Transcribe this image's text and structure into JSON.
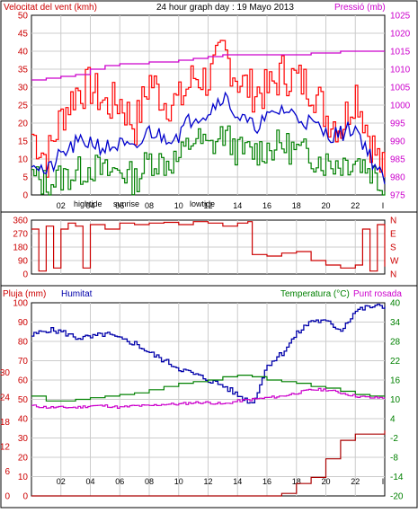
{
  "header": {
    "wind_label": "Velocitat del vent (kmh)",
    "title": "24 hour graph day : 19 Mayo 2013",
    "pressure_label": "Pressió (mb)"
  },
  "colors": {
    "wind_gust": "#ff0000",
    "wind_avg": "#0000cc",
    "wind_low": "#008000",
    "pressure": "#cc00cc",
    "direction": "#cc0000",
    "humidity": "#0000aa",
    "temperature": "#008000",
    "dewpoint": "#cc00cc",
    "rain": "#aa0000",
    "grid": "#cccccc",
    "axis_wind": "#cc0000",
    "axis_pressure": "#cc00cc",
    "axis_temp": "#008000"
  },
  "x_axis": {
    "ticks": [
      "02",
      "04",
      "06",
      "08",
      "10",
      "12",
      "14",
      "16",
      "18",
      "20",
      "22",
      "I"
    ],
    "events": [
      "hightide",
      "sunrise",
      "lowtide"
    ]
  },
  "chart_data": [
    {
      "type": "line",
      "name": "wind_pressure",
      "ylim": [
        0,
        50
      ],
      "yticks": [
        "0",
        "5",
        "10",
        "15",
        "20",
        "25",
        "30",
        "35",
        "40",
        "45",
        "50"
      ],
      "y2lim": [
        975,
        1025
      ],
      "y2ticks": [
        "975",
        "980",
        "985",
        "990",
        "995",
        "1000",
        "1005",
        "1010",
        "1015",
        "1020",
        "1025"
      ],
      "x_hours": [
        0,
        1,
        2,
        3,
        4,
        5,
        6,
        7,
        8,
        9,
        10,
        11,
        12,
        13,
        14,
        15,
        16,
        17,
        18,
        19,
        20,
        21,
        22,
        23,
        24
      ],
      "series": [
        {
          "key": "gust",
          "values": [
            17,
            10,
            22,
            29,
            30,
            25,
            26,
            19,
            32,
            26,
            26,
            33,
            32,
            40,
            32,
            29,
            29,
            34,
            32,
            30,
            22,
            19,
            29,
            15,
            5
          ]
        },
        {
          "key": "avg",
          "values": [
            10,
            6,
            11,
            14,
            15,
            13,
            14,
            12,
            18,
            16,
            17,
            22,
            23,
            28,
            22,
            19,
            21,
            24,
            22,
            20,
            17,
            17,
            19,
            11,
            3
          ]
        },
        {
          "key": "low",
          "values": [
            5,
            3,
            5,
            6,
            8,
            6,
            7,
            4,
            10,
            9,
            10,
            16,
            13,
            17,
            12,
            12,
            13,
            14,
            12,
            11,
            9,
            9,
            10,
            7,
            1
          ]
        },
        {
          "key": "pressure",
          "values": [
            1007,
            1007.5,
            1008,
            1008.5,
            1010,
            1011,
            1011.5,
            1011.5,
            1012,
            1012,
            1012.5,
            1013,
            1013.5,
            1014,
            1014,
            1014,
            1014,
            1014,
            1014,
            1014.5,
            1014.5,
            1015,
            1015,
            1015,
            1015
          ]
        }
      ]
    },
    {
      "type": "line",
      "name": "wind_direction",
      "ylim": [
        0,
        360
      ],
      "yticks": [
        "0",
        "90",
        "180",
        "270",
        "360"
      ],
      "y2ticks": [
        "N",
        "W",
        "S",
        "E",
        "N"
      ],
      "x_hours": [
        0,
        0.5,
        1,
        1.5,
        2,
        2.5,
        3,
        3.5,
        4,
        5,
        6,
        7,
        8,
        9,
        10,
        11,
        12,
        13,
        14,
        14.7,
        15,
        16,
        17,
        18,
        19,
        20,
        21,
        22,
        22.5,
        23,
        23.5,
        24
      ],
      "values": [
        300,
        20,
        320,
        40,
        300,
        340,
        320,
        40,
        330,
        300,
        340,
        330,
        340,
        345,
        330,
        350,
        340,
        320,
        340,
        350,
        130,
        120,
        140,
        150,
        90,
        60,
        40,
        60,
        300,
        20,
        330,
        50
      ]
    },
    {
      "type": "line",
      "name": "humidity_temperature",
      "ylim": [
        0,
        100
      ],
      "yticks": [
        "0",
        "10",
        "20",
        "30",
        "40",
        "50",
        "60",
        "70",
        "80",
        "90",
        "100"
      ],
      "rain_ticks": [
        "0",
        "6",
        "12",
        "18",
        "24",
        "30"
      ],
      "y2lim": [
        -20,
        40
      ],
      "y2ticks": [
        "-20",
        "-14",
        "-8",
        "-2",
        "4",
        "10",
        "16",
        "22",
        "28",
        "34",
        "40"
      ],
      "x_hours": [
        0,
        1,
        2,
        3,
        4,
        5,
        6,
        7,
        8,
        9,
        10,
        11,
        12,
        13,
        14,
        15,
        16,
        17,
        18,
        19,
        20,
        21,
        22,
        23,
        24
      ],
      "series": [
        {
          "key": "humidity",
          "values": [
            83,
            86,
            85,
            82,
            82,
            84,
            81,
            79,
            74,
            70,
            66,
            63,
            60,
            57,
            52,
            48,
            68,
            74,
            84,
            91,
            90,
            86,
            96,
            98,
            98
          ]
        },
        {
          "key": "temperature",
          "values": [
            11,
            9.5,
            9.5,
            10,
            10.5,
            11,
            11.5,
            12,
            13,
            14,
            15,
            15.5,
            16,
            17,
            17.5,
            17,
            16,
            15.5,
            15,
            14,
            13.5,
            12.5,
            11.5,
            11,
            11
          ]
        },
        {
          "key": "dewpoint",
          "values": [
            8,
            7.5,
            7.5,
            7.5,
            8,
            8,
            7.5,
            8,
            8,
            8.5,
            8.5,
            9,
            9,
            8.5,
            9.5,
            10,
            10.5,
            11,
            12,
            13,
            13,
            12,
            11,
            10.5,
            10.5
          ]
        },
        {
          "key": "rain",
          "values": [
            0,
            0,
            0,
            0,
            0,
            0,
            0,
            0,
            0,
            0,
            0,
            0,
            0,
            0,
            0,
            0,
            0,
            0.2,
            1,
            1.5,
            3,
            4.5,
            5,
            5,
            5.3
          ]
        }
      ]
    }
  ],
  "panel3": {
    "rain_label": "Pluja (mm)",
    "humidity_label": "Humitat",
    "temp_label": "Temperatura (°C)",
    "dew_label": "Punt rosada"
  }
}
